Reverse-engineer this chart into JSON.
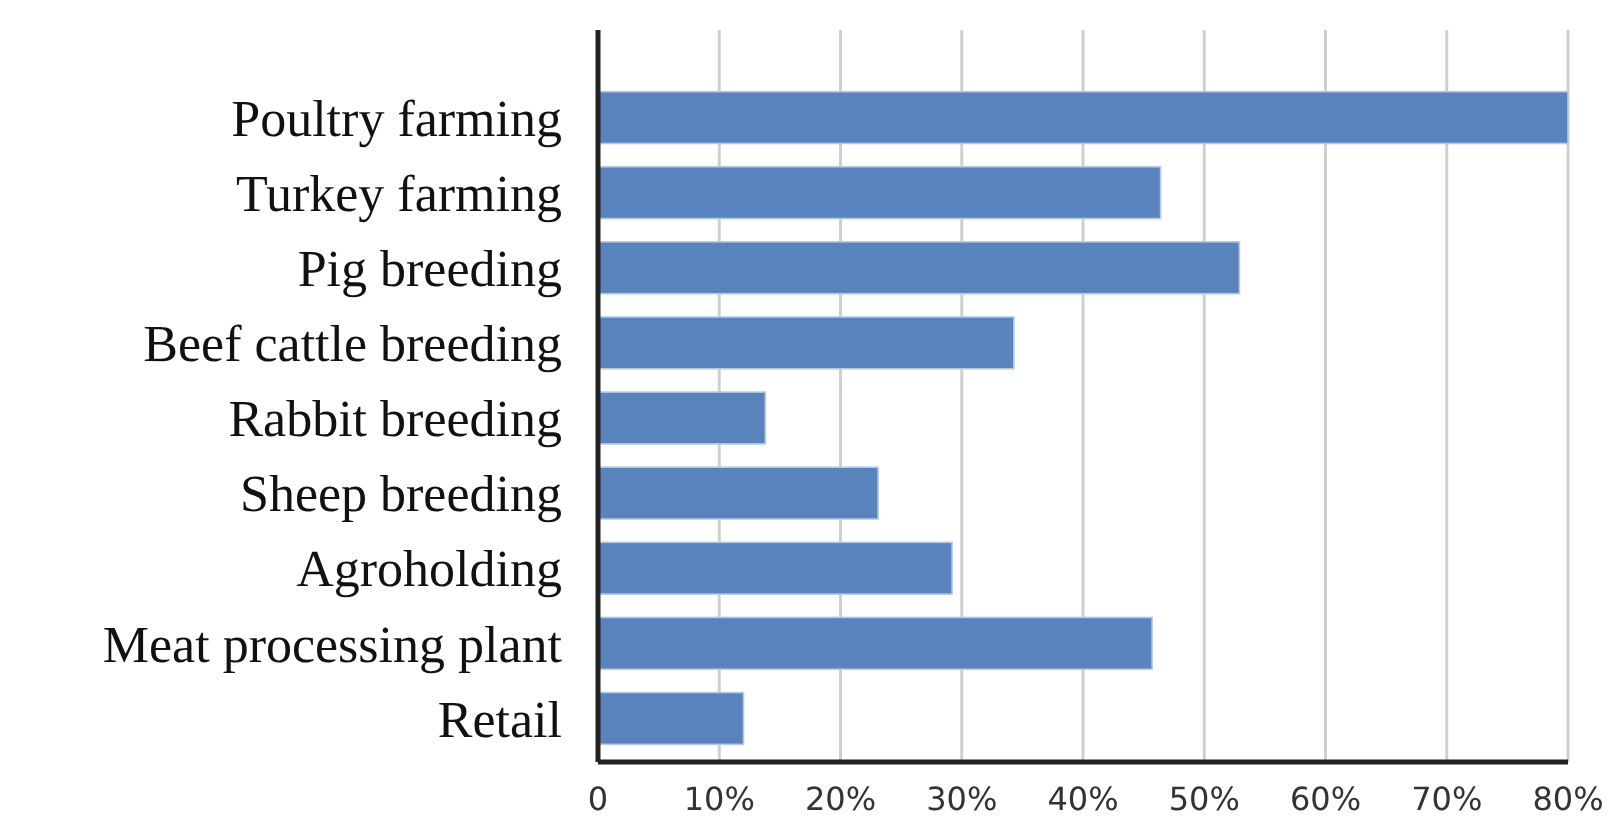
{
  "chart_data": {
    "type": "bar",
    "orientation": "horizontal",
    "categories": [
      "Poultry farming",
      "Turkey farming",
      "Pig breeding",
      "Beef cattle breeding",
      "Rabbit breeding",
      "Sheep breeding",
      "Agroholding",
      "Meat processing plant",
      "Retail"
    ],
    "values": [
      80,
      46.4,
      52.9,
      34.3,
      13.8,
      23.1,
      29.2,
      45.7,
      12.0
    ],
    "color": "#5883bd",
    "xlim": [
      0,
      80
    ],
    "xticks": [
      0,
      {
        "value": 10,
        "label": "10%"
      },
      {
        "value": 20,
        "label": "20%"
      },
      {
        "value": 30,
        "label": "30%"
      },
      {
        "value": 40,
        "label": "40%"
      },
      {
        "value": 50,
        "label": "50%"
      },
      {
        "value": 60,
        "label": "60%"
      },
      {
        "value": 70,
        "label": "70%"
      },
      {
        "value": 80,
        "label": "80%"
      }
    ],
    "grid": "x"
  }
}
